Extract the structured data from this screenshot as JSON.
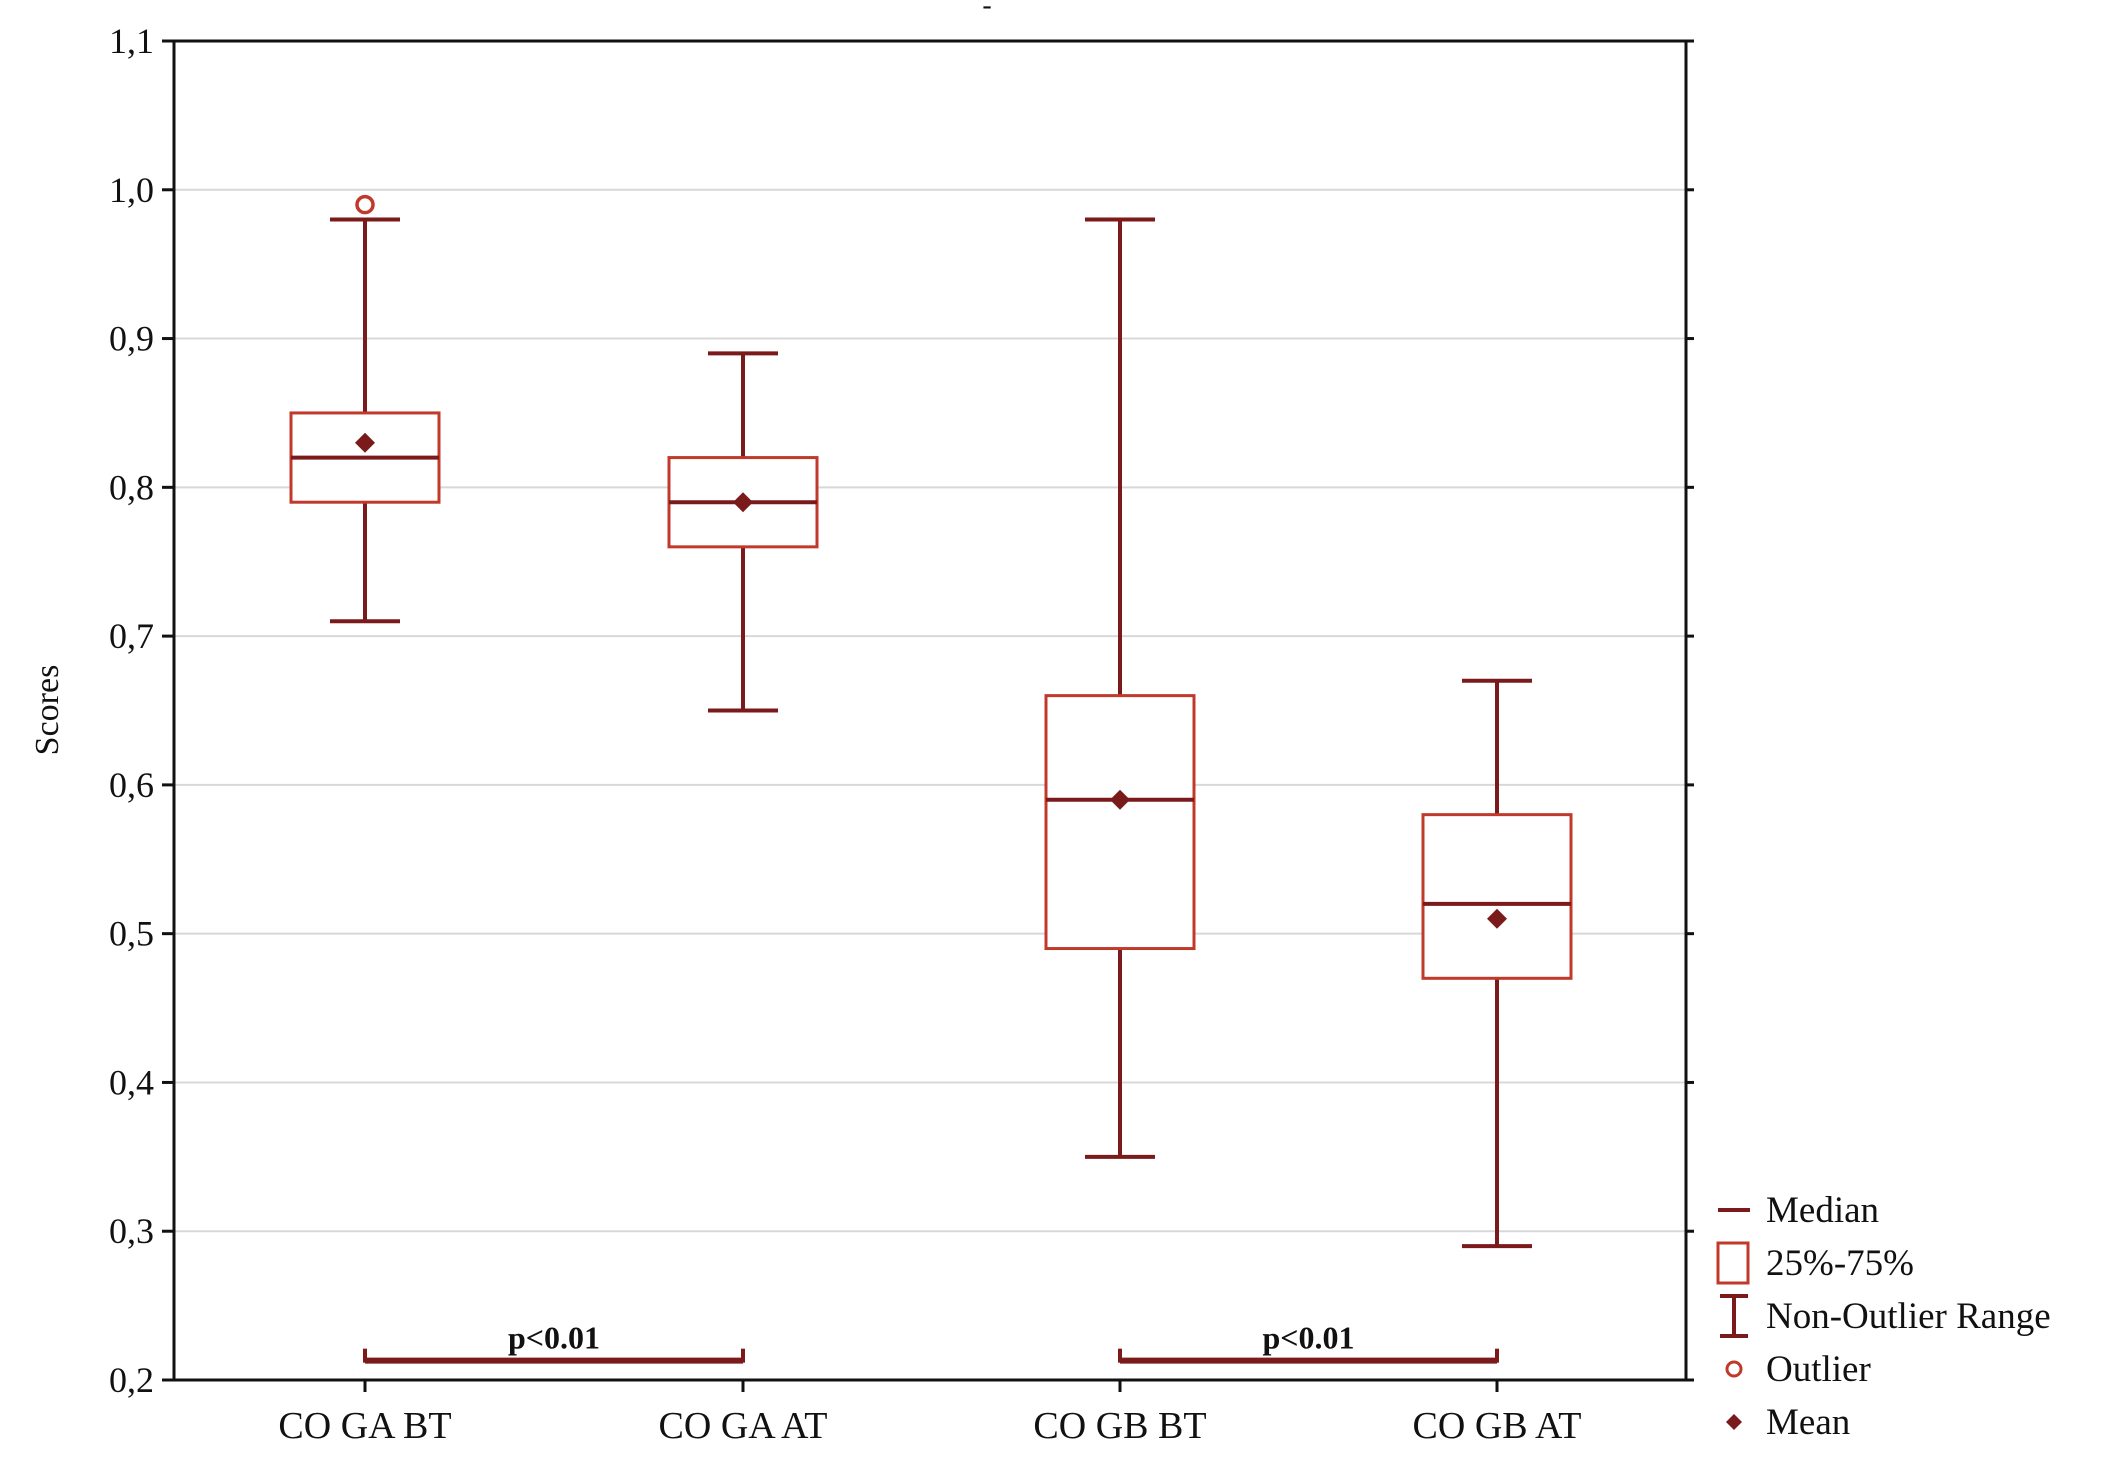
{
  "colors": {
    "main": "#7a1a1a",
    "box": "#c0392b",
    "grid": "#d8d8d8",
    "axis": "#111111"
  },
  "chart_data": {
    "type": "box",
    "title": "-",
    "xlabel": "",
    "ylabel": "Scores",
    "ylim": [
      0.2,
      1.1
    ],
    "yticks": [
      {
        "value": 0.2,
        "label": "0,2"
      },
      {
        "value": 0.3,
        "label": "0,3"
      },
      {
        "value": 0.4,
        "label": "0,4"
      },
      {
        "value": 0.5,
        "label": "0,5"
      },
      {
        "value": 0.6,
        "label": "0,6"
      },
      {
        "value": 0.7,
        "label": "0,7"
      },
      {
        "value": 0.8,
        "label": "0,8"
      },
      {
        "value": 0.9,
        "label": "0,9"
      },
      {
        "value": 1.0,
        "label": "1,0"
      },
      {
        "value": 1.1,
        "label": "1,1"
      }
    ],
    "grid": true,
    "categories": [
      "CO GA BT",
      "CO GA AT",
      "CO GB BT",
      "CO GB AT"
    ],
    "boxes": [
      {
        "category": "CO GA BT",
        "whisker_low": 0.71,
        "q1": 0.79,
        "median": 0.82,
        "q3": 0.85,
        "whisker_high": 0.98,
        "mean": 0.83,
        "outliers": [
          0.99
        ]
      },
      {
        "category": "CO GA AT",
        "whisker_low": 0.65,
        "q1": 0.76,
        "median": 0.79,
        "q3": 0.82,
        "whisker_high": 0.89,
        "mean": 0.79,
        "outliers": []
      },
      {
        "category": "CO GB BT",
        "whisker_low": 0.35,
        "q1": 0.49,
        "median": 0.59,
        "q3": 0.66,
        "whisker_high": 0.98,
        "mean": 0.59,
        "outliers": []
      },
      {
        "category": "CO GB AT",
        "whisker_low": 0.29,
        "q1": 0.47,
        "median": 0.52,
        "q3": 0.58,
        "whisker_high": 0.67,
        "mean": 0.51,
        "outliers": []
      }
    ],
    "annotations": [
      {
        "label": "p<0.01",
        "from": "CO GA BT",
        "to": "CO GA AT",
        "y": 0.213
      },
      {
        "label": "p<0.01",
        "from": "CO GB BT",
        "to": "CO GB AT",
        "y": 0.213
      }
    ],
    "legend": {
      "position": "bottom-right",
      "items": [
        {
          "symbol": "median",
          "label": "Median"
        },
        {
          "symbol": "box",
          "label": "25%-75%"
        },
        {
          "symbol": "whisker",
          "label": "Non-Outlier Range"
        },
        {
          "symbol": "outlier",
          "label": "Outlier"
        },
        {
          "symbol": "mean",
          "label": "Mean"
        }
      ]
    }
  }
}
